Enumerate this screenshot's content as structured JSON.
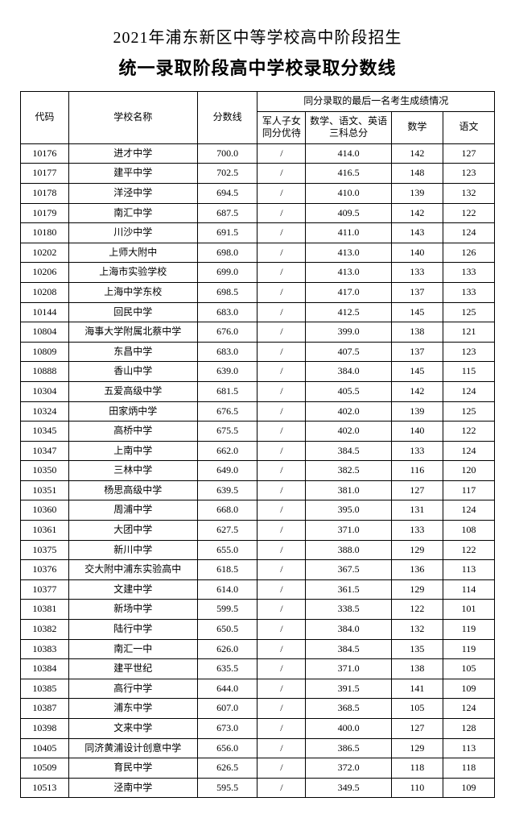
{
  "title1": "2021年浦东新区中等学校高中阶段招生",
  "title2": "统一录取阶段高中学校录取分数线",
  "headers": {
    "code": "代码",
    "name": "学校名称",
    "score": "分数线",
    "group": "同分录取的最后一名考生成绩情况",
    "military": "军人子女同分优待",
    "sum3": "数学、语文、英语三科总分",
    "math": "数学",
    "chinese": "语文"
  },
  "rows": [
    {
      "code": "10176",
      "name": "进才中学",
      "score": "700.0",
      "mil": "/",
      "sum3": "414.0",
      "math": "142",
      "chinese": "127"
    },
    {
      "code": "10177",
      "name": "建平中学",
      "score": "702.5",
      "mil": "/",
      "sum3": "416.5",
      "math": "148",
      "chinese": "123"
    },
    {
      "code": "10178",
      "name": "洋泾中学",
      "score": "694.5",
      "mil": "/",
      "sum3": "410.0",
      "math": "139",
      "chinese": "132"
    },
    {
      "code": "10179",
      "name": "南汇中学",
      "score": "687.5",
      "mil": "/",
      "sum3": "409.5",
      "math": "142",
      "chinese": "122"
    },
    {
      "code": "10180",
      "name": "川沙中学",
      "score": "691.5",
      "mil": "/",
      "sum3": "411.0",
      "math": "143",
      "chinese": "124"
    },
    {
      "code": "10202",
      "name": "上师大附中",
      "score": "698.0",
      "mil": "/",
      "sum3": "413.0",
      "math": "140",
      "chinese": "126"
    },
    {
      "code": "10206",
      "name": "上海市实验学校",
      "score": "699.0",
      "mil": "/",
      "sum3": "413.0",
      "math": "133",
      "chinese": "133"
    },
    {
      "code": "10208",
      "name": "上海中学东校",
      "score": "698.5",
      "mil": "/",
      "sum3": "417.0",
      "math": "137",
      "chinese": "133"
    },
    {
      "code": "10144",
      "name": "回民中学",
      "score": "683.0",
      "mil": "/",
      "sum3": "412.5",
      "math": "145",
      "chinese": "125"
    },
    {
      "code": "10804",
      "name": "海事大学附属北蔡中学",
      "score": "676.0",
      "mil": "/",
      "sum3": "399.0",
      "math": "138",
      "chinese": "121"
    },
    {
      "code": "10809",
      "name": "东昌中学",
      "score": "683.0",
      "mil": "/",
      "sum3": "407.5",
      "math": "137",
      "chinese": "123"
    },
    {
      "code": "10888",
      "name": "香山中学",
      "score": "639.0",
      "mil": "/",
      "sum3": "384.0",
      "math": "145",
      "chinese": "115"
    },
    {
      "code": "10304",
      "name": "五爱高级中学",
      "score": "681.5",
      "mil": "/",
      "sum3": "405.5",
      "math": "142",
      "chinese": "124"
    },
    {
      "code": "10324",
      "name": "田家炳中学",
      "score": "676.5",
      "mil": "/",
      "sum3": "402.0",
      "math": "139",
      "chinese": "125"
    },
    {
      "code": "10345",
      "name": "高桥中学",
      "score": "675.5",
      "mil": "/",
      "sum3": "402.0",
      "math": "140",
      "chinese": "122"
    },
    {
      "code": "10347",
      "name": "上南中学",
      "score": "662.0",
      "mil": "/",
      "sum3": "384.5",
      "math": "133",
      "chinese": "124"
    },
    {
      "code": "10350",
      "name": "三林中学",
      "score": "649.0",
      "mil": "/",
      "sum3": "382.5",
      "math": "116",
      "chinese": "120"
    },
    {
      "code": "10351",
      "name": "杨思高级中学",
      "score": "639.5",
      "mil": "/",
      "sum3": "381.0",
      "math": "127",
      "chinese": "117"
    },
    {
      "code": "10360",
      "name": "周浦中学",
      "score": "668.0",
      "mil": "/",
      "sum3": "395.0",
      "math": "131",
      "chinese": "124"
    },
    {
      "code": "10361",
      "name": "大团中学",
      "score": "627.5",
      "mil": "/",
      "sum3": "371.0",
      "math": "133",
      "chinese": "108"
    },
    {
      "code": "10375",
      "name": "新川中学",
      "score": "655.0",
      "mil": "/",
      "sum3": "388.0",
      "math": "129",
      "chinese": "122"
    },
    {
      "code": "10376",
      "name": "交大附中浦东实验高中",
      "score": "618.5",
      "mil": "/",
      "sum3": "367.5",
      "math": "136",
      "chinese": "113"
    },
    {
      "code": "10377",
      "name": "文建中学",
      "score": "614.0",
      "mil": "/",
      "sum3": "361.5",
      "math": "129",
      "chinese": "114"
    },
    {
      "code": "10381",
      "name": "新场中学",
      "score": "599.5",
      "mil": "/",
      "sum3": "338.5",
      "math": "122",
      "chinese": "101"
    },
    {
      "code": "10382",
      "name": "陆行中学",
      "score": "650.5",
      "mil": "/",
      "sum3": "384.0",
      "math": "132",
      "chinese": "119"
    },
    {
      "code": "10383",
      "name": "南汇一中",
      "score": "626.0",
      "mil": "/",
      "sum3": "384.5",
      "math": "135",
      "chinese": "119"
    },
    {
      "code": "10384",
      "name": "建平世纪",
      "score": "635.5",
      "mil": "/",
      "sum3": "371.0",
      "math": "138",
      "chinese": "105"
    },
    {
      "code": "10385",
      "name": "高行中学",
      "score": "644.0",
      "mil": "/",
      "sum3": "391.5",
      "math": "141",
      "chinese": "109"
    },
    {
      "code": "10387",
      "name": "浦东中学",
      "score": "607.0",
      "mil": "/",
      "sum3": "368.5",
      "math": "105",
      "chinese": "124"
    },
    {
      "code": "10398",
      "name": "文来中学",
      "score": "673.0",
      "mil": "/",
      "sum3": "400.0",
      "math": "127",
      "chinese": "128"
    },
    {
      "code": "10405",
      "name": "同济黄浦设计创意中学",
      "score": "656.0",
      "mil": "/",
      "sum3": "386.5",
      "math": "129",
      "chinese": "113"
    },
    {
      "code": "10509",
      "name": "育民中学",
      "score": "626.5",
      "mil": "/",
      "sum3": "372.0",
      "math": "118",
      "chinese": "118"
    },
    {
      "code": "10513",
      "name": "泾南中学",
      "score": "595.5",
      "mil": "/",
      "sum3": "349.5",
      "math": "110",
      "chinese": "109"
    }
  ]
}
